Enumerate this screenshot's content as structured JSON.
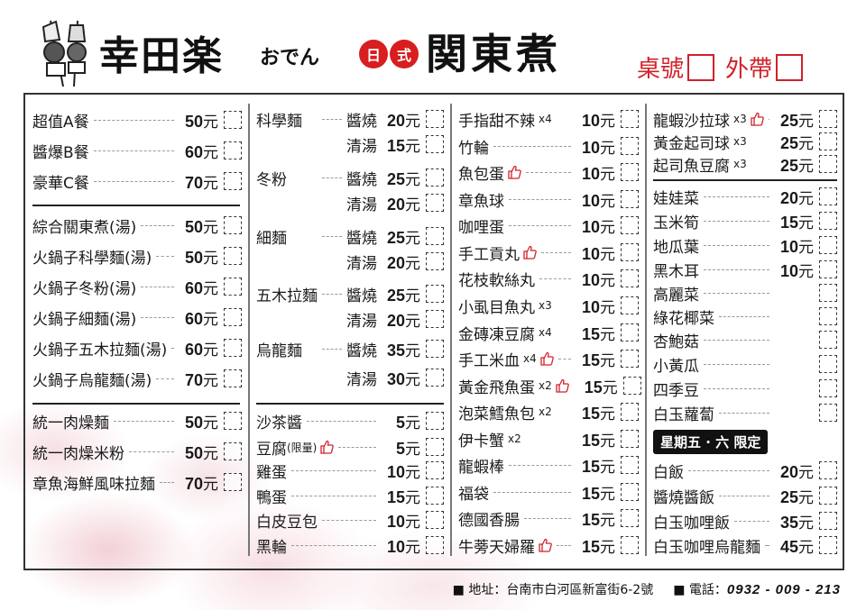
{
  "header": {
    "brand": "幸田楽",
    "kana": "おでん",
    "style_badge": [
      "日",
      "式"
    ],
    "title": "関東煮",
    "table_label": "桌號",
    "takeout_label": "外帶",
    "accent_color": "#d0222a"
  },
  "col1": [
    [
      {
        "name": "超值A餐",
        "price": "50"
      },
      {
        "name": "醬爆B餐",
        "price": "60"
      },
      {
        "name": "豪華C餐",
        "price": "70"
      }
    ],
    [
      {
        "name": "綜合關東煮(湯)",
        "price": "50"
      },
      {
        "name": "火鍋子科學麵(湯)",
        "price": "50"
      },
      {
        "name": "火鍋子冬粉(湯)",
        "price": "60"
      },
      {
        "name": "火鍋子細麵(湯)",
        "price": "60"
      },
      {
        "name": "火鍋子五木拉麵(湯)",
        "price": "60"
      },
      {
        "name": "火鍋子烏龍麵(湯)",
        "price": "70"
      }
    ],
    [
      {
        "name": "統一肉燥麵",
        "price": "50"
      },
      {
        "name": "統一肉燥米粉",
        "price": "50"
      },
      {
        "name": "章魚海鮮風味拉麵",
        "price": "70"
      }
    ]
  ],
  "col2": [
    [
      {
        "name": "科學麵",
        "sub": "醬燒",
        "price": "20"
      },
      {
        "name": "",
        "sub": "清湯",
        "price": "15"
      },
      {
        "name": "冬粉",
        "sub": "醬燒",
        "price": "25"
      },
      {
        "name": "",
        "sub": "清湯",
        "price": "20"
      },
      {
        "name": "細麵",
        "sub": "醬燒",
        "price": "25"
      },
      {
        "name": "",
        "sub": "清湯",
        "price": "20"
      },
      {
        "name": "五木拉麵",
        "sub": "醬燒",
        "price": "25"
      },
      {
        "name": "",
        "sub": "清湯",
        "price": "20"
      },
      {
        "name": "烏龍麵",
        "sub": "醬燒",
        "price": "35"
      },
      {
        "name": "",
        "sub": "清湯",
        "price": "30"
      }
    ],
    [
      {
        "name": "沙茶醬",
        "price": "5"
      },
      {
        "name": "豆腐",
        "note": "(限量)",
        "thumb": true,
        "price": "5"
      },
      {
        "name": "雞蛋",
        "price": "10"
      },
      {
        "name": "鴨蛋",
        "price": "15"
      },
      {
        "name": "白皮豆包",
        "price": "10"
      },
      {
        "name": "黑輪",
        "price": "10"
      }
    ]
  ],
  "col3": [
    [
      {
        "name": "手指甜不辣",
        "qty": "x4",
        "price": "10"
      },
      {
        "name": "竹輪",
        "price": "10"
      },
      {
        "name": "魚包蛋",
        "thumb": true,
        "price": "10"
      },
      {
        "name": "章魚球",
        "price": "10"
      },
      {
        "name": "咖哩蛋",
        "price": "10"
      },
      {
        "name": "手工貢丸",
        "thumb": true,
        "price": "10"
      },
      {
        "name": "花枝軟絲丸",
        "price": "10"
      },
      {
        "name": "小虱目魚丸",
        "qty": "x3",
        "price": "10"
      },
      {
        "name": "金磚凍豆腐",
        "qty": "x4",
        "price": "15"
      },
      {
        "name": "手工米血",
        "qty": "x4",
        "thumb": true,
        "price": "15"
      },
      {
        "name": "黃金飛魚蛋",
        "qty": "x2",
        "thumb": true,
        "price": "15"
      },
      {
        "name": "泡菜鱈魚包",
        "qty": "x2",
        "price": "15"
      },
      {
        "name": "伊卡蟹",
        "qty": "x2",
        "price": "15"
      },
      {
        "name": "龍蝦棒",
        "price": "15"
      },
      {
        "name": "福袋",
        "price": "15"
      },
      {
        "name": "德國香腸",
        "price": "15"
      },
      {
        "name": "牛蒡天婦羅",
        "thumb": true,
        "price": "15"
      }
    ]
  ],
  "col4": [
    [
      {
        "name": "龍蝦沙拉球",
        "qty": "x3",
        "thumb": true,
        "price": "25"
      },
      {
        "name": "黃金起司球",
        "qty": "x3",
        "price": "25"
      },
      {
        "name": "起司魚豆腐",
        "qty": "x3",
        "price": "25"
      }
    ],
    [
      {
        "name": "娃娃菜",
        "price": "20"
      },
      {
        "name": "玉米筍",
        "price": "15"
      },
      {
        "name": "地瓜葉",
        "price": "10"
      },
      {
        "name": "黑木耳",
        "price": "10"
      },
      {
        "name": "高麗菜",
        "price": ""
      },
      {
        "name": "綠花椰菜",
        "price": ""
      },
      {
        "name": "杏鮑菇",
        "price": ""
      },
      {
        "name": "小黃瓜",
        "price": ""
      },
      {
        "name": "四季豆",
        "price": ""
      },
      {
        "name": "白玉蘿蔔",
        "price": ""
      }
    ],
    [
      {
        "name": "白飯",
        "price": "20"
      },
      {
        "name": "醬燒醬飯",
        "price": "25"
      },
      {
        "name": "白玉咖哩飯",
        "price": "35"
      },
      {
        "name": "白玉咖哩烏龍麵",
        "price": "45"
      }
    ]
  ],
  "currency": "元",
  "weekend_badge": "星期五 · 六 限定",
  "footer": {
    "address_label": "■ 地址：",
    "address": "台南市白河區新富街6-2號",
    "phone_label": "■ 電話：",
    "phone": "0932 - 009 - 213"
  }
}
